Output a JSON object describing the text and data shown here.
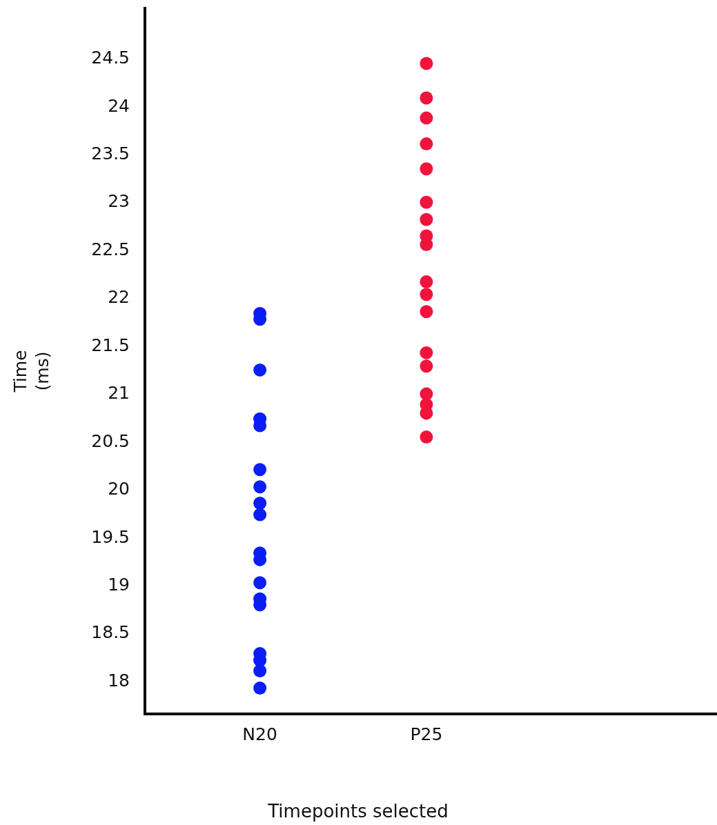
{
  "chart_data": {
    "type": "scatter",
    "xlabel": "Timepoints selected",
    "ylabel": "Time (ms)",
    "categories": [
      "N20",
      "P25"
    ],
    "ylim": [
      17.65,
      25.03
    ],
    "yticks": [
      18,
      18.5,
      19,
      19.5,
      20,
      20.5,
      21,
      21.5,
      22,
      22.5,
      23,
      23.5,
      24,
      24.5
    ],
    "marker": "circle",
    "grid": false,
    "series": [
      {
        "color": "#0a1ef5",
        "x": [
          "N20",
          "N20",
          "N20",
          "N20",
          "N20",
          "N20",
          "N20",
          "N20",
          "N20",
          "N20",
          "N20",
          "N20",
          "N20",
          "N20",
          "N20",
          "N20",
          "N20",
          "N20"
        ],
        "values": [
          21.83,
          21.77,
          21.24,
          20.73,
          20.66,
          20.2,
          20.02,
          19.85,
          19.73,
          19.33,
          19.26,
          19.02,
          18.85,
          18.79,
          18.28,
          18.21,
          18.1,
          17.92
        ]
      },
      {
        "color": "#f0143c",
        "x": [
          "P25",
          "P25",
          "P25",
          "P25",
          "P25",
          "P25",
          "P25",
          "P25",
          "P25",
          "P25",
          "P25",
          "P25",
          "P25",
          "P25",
          "P25",
          "P25",
          "P25",
          "P25"
        ],
        "values": [
          24.44,
          24.08,
          23.87,
          23.6,
          23.34,
          22.99,
          22.81,
          22.64,
          22.55,
          22.16,
          22.03,
          21.85,
          21.42,
          21.28,
          20.99,
          20.88,
          20.79,
          20.54
        ]
      }
    ]
  }
}
